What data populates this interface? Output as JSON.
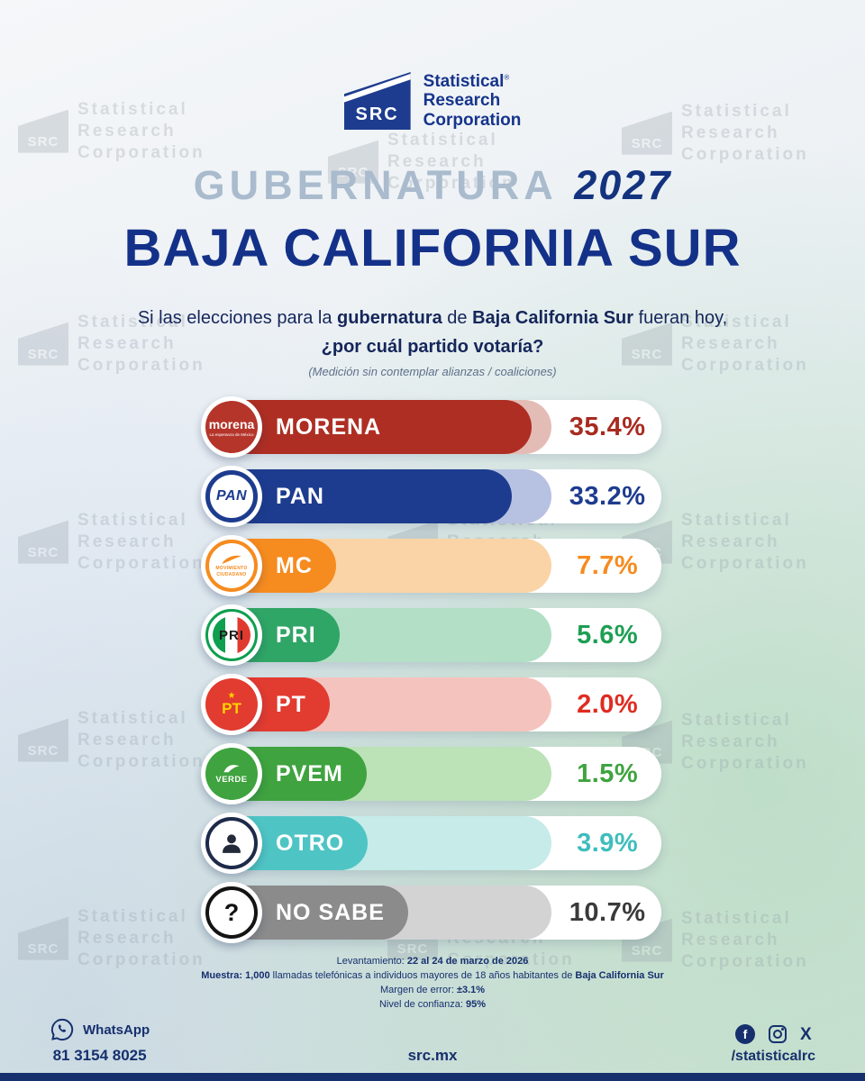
{
  "brand": {
    "logo_text": "SRC",
    "name_lines": [
      "Statistical",
      "Research",
      "Corporation"
    ],
    "registered_mark": "®"
  },
  "header": {
    "title": "GUBERNATURA",
    "year": "2027",
    "state": "BAJA CALIFORNIA SUR"
  },
  "question": {
    "line1_pre": "Si las elecciones para la ",
    "line1_bold1": "gubernatura",
    "line1_mid": " de ",
    "line1_bold2": "Baja California Sur",
    "line1_post": " fueran hoy,",
    "line2": "¿por cuál partido votaría?",
    "note": "(Medición sin contemplar alianzas / coaliciones)"
  },
  "chart_data": {
    "type": "bar",
    "orientation": "horizontal",
    "title": "Si las elecciones para la gubernatura de Baja California Sur fueran hoy, ¿por cuál partido votaría?",
    "subtitle": "(Medición sin contemplar alianzas / coaliciones)",
    "categories": [
      "MORENA",
      "PAN",
      "MC",
      "PRI",
      "PT",
      "PVEM",
      "OTRO",
      "NO SABE"
    ],
    "values": [
      35.4,
      33.2,
      7.7,
      5.6,
      2.0,
      1.5,
      3.9,
      10.7
    ],
    "value_labels": [
      "35.4%",
      "33.2%",
      "7.7%",
      "5.6%",
      "2.0%",
      "1.5%",
      "3.9%",
      "10.7%"
    ],
    "unit": "%",
    "scale_max": 37.5,
    "colors": [
      "#AE2E23",
      "#1D3C8F",
      "#F68B1F",
      "#2FA566",
      "#E23B30",
      "#3FA33F",
      "#4FC4C4",
      "#8B8B8B"
    ]
  },
  "parties": [
    {
      "name": "MORENA",
      "value_label": "35.4%",
      "pct": 35.4,
      "color": "#AE2E23",
      "tint": "#E4BCB6",
      "pct_color": "#A72B20"
    },
    {
      "name": "PAN",
      "value_label": "33.2%",
      "pct": 33.2,
      "color": "#1D3C8F",
      "tint": "#B7C1E2",
      "pct_color": "#1D3C8F"
    },
    {
      "name": "MC",
      "value_label": "7.7%",
      "pct": 7.7,
      "color": "#F68B1F",
      "tint": "#FAD4A6",
      "pct_color": "#F68B1F"
    },
    {
      "name": "PRI",
      "value_label": "5.6%",
      "pct": 5.6,
      "color": "#2FA566",
      "tint": "#B2DFC6",
      "pct_color": "#1E9E53"
    },
    {
      "name": "PT",
      "value_label": "2.0%",
      "pct": 2.0,
      "color": "#E23B30",
      "tint": "#F5C3BD",
      "pct_color": "#E02B20"
    },
    {
      "name": "PVEM",
      "value_label": "1.5%",
      "pct": 1.5,
      "color": "#3FA33F",
      "tint": "#BCE2B8",
      "pct_color": "#3FA33F"
    },
    {
      "name": "OTRO",
      "value_label": "3.9%",
      "pct": 3.9,
      "color": "#4FC4C4",
      "tint": "#C6EBE9",
      "pct_color": "#3FBDBD"
    },
    {
      "name": "NO SABE",
      "value_label": "10.7%",
      "pct": 10.7,
      "color": "#8B8B8B",
      "tint": "#D3D3D3",
      "pct_color": "#3A3A3A"
    }
  ],
  "logos": {
    "morena": {
      "text": "morena",
      "tagline": "La esperanza de México"
    },
    "pan": {
      "text": "PAN"
    },
    "mc": {
      "line1": "MOVIMIENTO",
      "line2": "CIUDADANO"
    },
    "pri": {
      "text": "PRI"
    },
    "pt": {
      "text": "PT",
      "star_glyph": "★"
    },
    "pvem": {
      "text": "VERDE"
    },
    "no_sabe": {
      "glyph": "?"
    }
  },
  "footnotes": {
    "l1_label": "Levantamiento: ",
    "l1_value": "22 al 24 de marzo de 2026",
    "l2_label": "Muestra: ",
    "l2_bold1": "1,000",
    "l2_mid": " llamadas telefónicas a individuos mayores de 18 años habitantes de ",
    "l2_bold2": "Baja California Sur",
    "l3_label": "Margen de error: ",
    "l3_value": "±3.1%",
    "l4_label": "Nivel de confianza: ",
    "l4_value": "95%"
  },
  "contact": {
    "whatsapp_label": "WhatsApp",
    "whatsapp_number": "81 3154 8025",
    "website": "src.mx",
    "social_handle": "/statisticalrc"
  },
  "icons": {
    "facebook_glyph": "f",
    "x_glyph": "X"
  },
  "watermark": {
    "logo_text": "SRC",
    "lines": [
      "Statistical",
      "Research",
      "Corporation"
    ]
  }
}
